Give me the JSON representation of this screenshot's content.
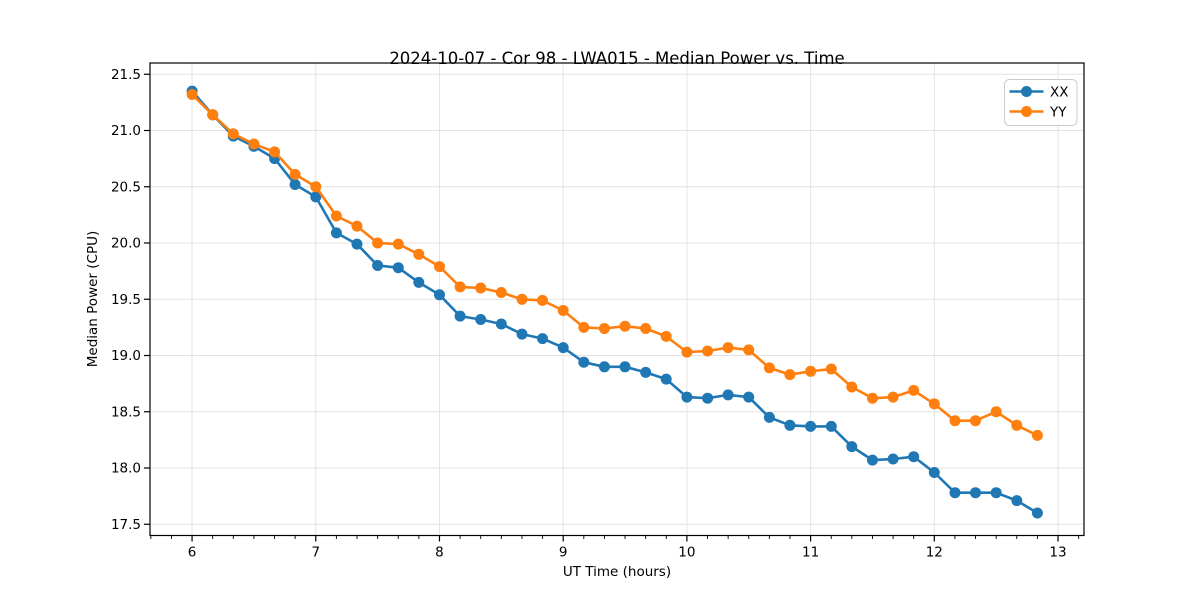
{
  "chart_data": {
    "type": "line",
    "title": "2024-10-07 - Cor 98 - LWA015 - Median Power vs. Time",
    "xlabel": "UT Time (hours)",
    "ylabel": "Median Power (CPU)",
    "xlim": [
      5.66,
      13.21
    ],
    "ylim": [
      17.4,
      21.6
    ],
    "x_ticks": [
      6,
      7,
      8,
      9,
      10,
      11,
      12,
      13
    ],
    "y_ticks": [
      17.5,
      18.0,
      18.5,
      19.0,
      19.5,
      20.0,
      20.5,
      21.0,
      21.5
    ],
    "x_minor_step": 0.1667,
    "grid": true,
    "grid_color": "#e3e3e3",
    "legend_position": "upper right",
    "x": [
      6.0,
      6.167,
      6.333,
      6.5,
      6.667,
      6.833,
      7.0,
      7.167,
      7.333,
      7.5,
      7.667,
      7.833,
      8.0,
      8.167,
      8.333,
      8.5,
      8.667,
      8.833,
      9.0,
      9.167,
      9.333,
      9.5,
      9.667,
      9.833,
      10.0,
      10.167,
      10.333,
      10.5,
      10.667,
      10.833,
      11.0,
      11.167,
      11.333,
      11.5,
      11.667,
      11.833,
      12.0,
      12.167,
      12.333,
      12.5,
      12.667,
      12.833
    ],
    "series": [
      {
        "name": "XX",
        "color": "#1f77b4",
        "values": [
          21.35,
          21.14,
          20.95,
          20.86,
          20.75,
          20.52,
          20.41,
          20.09,
          19.99,
          19.8,
          19.78,
          19.65,
          19.54,
          19.35,
          19.32,
          19.28,
          19.19,
          19.15,
          19.07,
          18.94,
          18.9,
          18.9,
          18.85,
          18.79,
          18.63,
          18.62,
          18.65,
          18.63,
          18.45,
          18.38,
          18.37,
          18.37,
          18.19,
          18.07,
          18.08,
          18.1,
          17.96,
          17.78,
          17.78,
          17.78,
          17.71,
          17.6
        ]
      },
      {
        "name": "YY",
        "color": "#ff7f0e",
        "values": [
          21.32,
          21.14,
          20.97,
          20.88,
          20.81,
          20.61,
          20.5,
          20.24,
          20.15,
          20.0,
          19.99,
          19.9,
          19.79,
          19.61,
          19.6,
          19.56,
          19.5,
          19.49,
          19.4,
          19.25,
          19.24,
          19.26,
          19.24,
          19.17,
          19.03,
          19.04,
          19.07,
          19.05,
          18.89,
          18.83,
          18.86,
          18.88,
          18.72,
          18.62,
          18.63,
          18.69,
          18.57,
          18.42,
          18.42,
          18.5,
          18.38,
          18.29
        ]
      }
    ]
  }
}
